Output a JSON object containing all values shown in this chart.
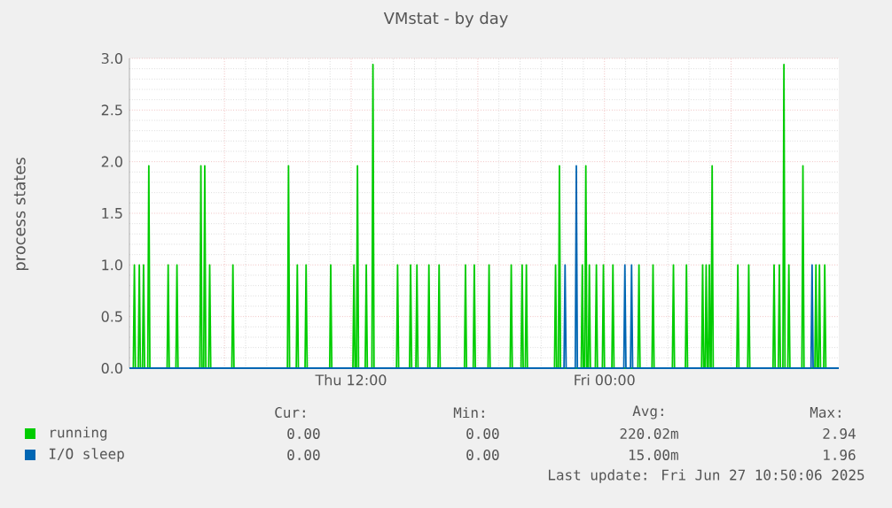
{
  "chart_data": {
    "type": "line",
    "title": "VMstat - by day",
    "ylabel": "process states",
    "xlim": [
      "2025-06-26T01:30",
      "2025-06-27T11:06"
    ],
    "ylim": [
      0,
      3
    ],
    "xticks": [
      {
        "value": "2025-06-26T06:00",
        "label": null
      },
      {
        "value": "2025-06-26T12:00",
        "label": "Thu 12:00"
      },
      {
        "value": "2025-06-26T18:00",
        "label": null
      },
      {
        "value": "2025-06-27T00:00",
        "label": "Fri 00:00"
      },
      {
        "value": "2025-06-27T06:00",
        "label": null
      }
    ],
    "yticks": [
      {
        "value": 0,
        "label": "0.0"
      },
      {
        "value": 0.5,
        "label": "0.5"
      },
      {
        "value": 1,
        "label": "1.0"
      },
      {
        "value": 1.5,
        "label": "1.5"
      },
      {
        "value": 2,
        "label": "2.0"
      },
      {
        "value": 2.5,
        "label": "2.5"
      },
      {
        "value": 3,
        "label": "3.0"
      }
    ],
    "grid": true,
    "legend": "bottom",
    "line_style": "solid",
    "series": [
      {
        "name": "running",
        "color": "#00cc00",
        "x": [
          "2025-06-26T01:30",
          "2025-06-26T01:41",
          "2025-06-26T01:44",
          "2025-06-26T01:47",
          "2025-06-26T01:55",
          "2025-06-26T01:58",
          "2025-06-26T02:01",
          "2025-06-26T02:07",
          "2025-06-26T02:10",
          "2025-06-26T02:13",
          "2025-06-26T02:22",
          "2025-06-26T02:25",
          "2025-06-26T02:28",
          "2025-06-26T03:17",
          "2025-06-26T03:20",
          "2025-06-26T03:23",
          "2025-06-26T03:42",
          "2025-06-26T03:45",
          "2025-06-26T03:48",
          "2025-06-26T04:50",
          "2025-06-26T04:53",
          "2025-06-26T04:56",
          "2025-06-26T05:01",
          "2025-06-26T05:04",
          "2025-06-26T05:07",
          "2025-06-26T05:15",
          "2025-06-26T05:18",
          "2025-06-26T05:21",
          "2025-06-26T06:21",
          "2025-06-26T06:24",
          "2025-06-26T06:27",
          "2025-06-26T08:59",
          "2025-06-26T09:02",
          "2025-06-26T09:05",
          "2025-06-26T09:24",
          "2025-06-26T09:27",
          "2025-06-26T09:30",
          "2025-06-26T09:49",
          "2025-06-26T09:52",
          "2025-06-26T09:55",
          "2025-06-26T10:59",
          "2025-06-26T11:02",
          "2025-06-26T11:05",
          "2025-06-26T12:05",
          "2025-06-26T12:08",
          "2025-06-26T12:11",
          "2025-06-26T12:15",
          "2025-06-26T12:18",
          "2025-06-26T12:21",
          "2025-06-26T12:40",
          "2025-06-26T12:43",
          "2025-06-26T12:46",
          "2025-06-26T12:59",
          "2025-06-26T13:02",
          "2025-06-26T13:05",
          "2025-06-26T14:09",
          "2025-06-26T14:12",
          "2025-06-26T14:15",
          "2025-06-26T14:46",
          "2025-06-26T14:49",
          "2025-06-26T14:52",
          "2025-06-26T15:04",
          "2025-06-26T15:07",
          "2025-06-26T15:10",
          "2025-06-26T15:38",
          "2025-06-26T15:41",
          "2025-06-26T15:44",
          "2025-06-26T16:07",
          "2025-06-26T16:10",
          "2025-06-26T16:13",
          "2025-06-26T17:22",
          "2025-06-26T17:25",
          "2025-06-26T17:28",
          "2025-06-26T17:47",
          "2025-06-26T17:50",
          "2025-06-26T17:53",
          "2025-06-26T18:29",
          "2025-06-26T18:32",
          "2025-06-26T18:35",
          "2025-06-26T19:32",
          "2025-06-26T19:35",
          "2025-06-26T19:38",
          "2025-06-26T20:03",
          "2025-06-26T20:06",
          "2025-06-26T20:09",
          "2025-06-26T20:15",
          "2025-06-26T20:18",
          "2025-06-26T20:21",
          "2025-06-26T21:38",
          "2025-06-26T21:41",
          "2025-06-26T21:44",
          "2025-06-26T21:49",
          "2025-06-26T21:52",
          "2025-06-26T21:55",
          "2025-06-26T22:54",
          "2025-06-26T22:57",
          "2025-06-26T23:00",
          "2025-06-26T23:04",
          "2025-06-26T23:07",
          "2025-06-26T23:10",
          "2025-06-26T23:14",
          "2025-06-26T23:17",
          "2025-06-26T23:20",
          "2025-06-26T23:34",
          "2025-06-26T23:37",
          "2025-06-26T23:40",
          "2025-06-26T23:54",
          "2025-06-26T23:57",
          "2025-06-27T00:00",
          "2025-06-27T00:21",
          "2025-06-27T00:24",
          "2025-06-27T00:27",
          "2025-06-27T01:35",
          "2025-06-27T01:38",
          "2025-06-27T01:41",
          "2025-06-27T02:15",
          "2025-06-27T02:18",
          "2025-06-27T02:21",
          "2025-06-27T03:13",
          "2025-06-27T03:16",
          "2025-06-27T03:19",
          "2025-06-27T03:50",
          "2025-06-27T03:53",
          "2025-06-27T03:56",
          "2025-06-27T04:36",
          "2025-06-27T04:39",
          "2025-06-27T04:42",
          "2025-06-27T04:46",
          "2025-06-27T04:49",
          "2025-06-27T04:52",
          "2025-06-27T04:55",
          "2025-06-27T04:58",
          "2025-06-27T05:01",
          "2025-06-27T05:03",
          "2025-06-27T05:06",
          "2025-06-27T05:09",
          "2025-06-27T06:16",
          "2025-06-27T06:19",
          "2025-06-27T06:22",
          "2025-06-27T06:47",
          "2025-06-27T06:50",
          "2025-06-27T06:53",
          "2025-06-27T07:59",
          "2025-06-27T08:02",
          "2025-06-27T08:05",
          "2025-06-27T08:14",
          "2025-06-27T08:17",
          "2025-06-27T08:20",
          "2025-06-27T08:27",
          "2025-06-27T08:30",
          "2025-06-27T08:33",
          "2025-06-27T08:41",
          "2025-06-27T08:44",
          "2025-06-27T08:47",
          "2025-06-27T09:21",
          "2025-06-27T09:24",
          "2025-06-27T09:27",
          "2025-06-27T09:58",
          "2025-06-27T10:01",
          "2025-06-27T10:04",
          "2025-06-27T10:08",
          "2025-06-27T10:11",
          "2025-06-27T10:14",
          "2025-06-27T10:23",
          "2025-06-27T10:26",
          "2025-06-27T10:29",
          "2025-06-27T11:06"
        ],
        "values": [
          0,
          0,
          1,
          0,
          0,
          1,
          0,
          0,
          1,
          0,
          0,
          1.96,
          0,
          0,
          1,
          0,
          0,
          1,
          0,
          0,
          1.96,
          0,
          0,
          1.96,
          0,
          0,
          1,
          0,
          0,
          1,
          0,
          0,
          1.96,
          0,
          0,
          1,
          0,
          0,
          1,
          0,
          0,
          1,
          0,
          0,
          1,
          0,
          0,
          1.96,
          0,
          0,
          1,
          0,
          0,
          2.94,
          0,
          0,
          1,
          0,
          0,
          1,
          0,
          0,
          1,
          0,
          0,
          1,
          0,
          0,
          1,
          0,
          0,
          1,
          0,
          0,
          1,
          0,
          0,
          1,
          0,
          0,
          1,
          0,
          0,
          1,
          0,
          0,
          1,
          0,
          0,
          1,
          0,
          0,
          1.96,
          0,
          0,
          1,
          0,
          0,
          1.96,
          0,
          0,
          1,
          0,
          0,
          1,
          0,
          0,
          1,
          0,
          0,
          1,
          0,
          0,
          1,
          0,
          0,
          1,
          0,
          0,
          1,
          0,
          0,
          1,
          0,
          0,
          1,
          0,
          0,
          1,
          0,
          0,
          1,
          0,
          0,
          1.96,
          0,
          0,
          1,
          0,
          0,
          1,
          0,
          0,
          1,
          0,
          0,
          1,
          0,
          0,
          2.94,
          0,
          0,
          1,
          0,
          0,
          1.96,
          0,
          0,
          1,
          0,
          0,
          1,
          0,
          0,
          1,
          0,
          0
        ]
      },
      {
        "name": "I/O sleep",
        "color": "#0066b3",
        "x": [
          "2025-06-26T01:30",
          "2025-06-26T22:05",
          "2025-06-26T22:08",
          "2025-06-26T22:11",
          "2025-06-26T22:37",
          "2025-06-26T22:40",
          "2025-06-26T22:43",
          "2025-06-27T00:55",
          "2025-06-27T00:58",
          "2025-06-27T01:01",
          "2025-06-27T01:14",
          "2025-06-27T01:17",
          "2025-06-27T01:20",
          "2025-06-27T09:47",
          "2025-06-27T09:50",
          "2025-06-27T09:53",
          "2025-06-27T11:06"
        ],
        "values": [
          0,
          0,
          1,
          0,
          0,
          1.96,
          0,
          0,
          1,
          0,
          0,
          1,
          0,
          0,
          1,
          0,
          0
        ]
      }
    ],
    "annotations": [
      "Cur:",
      "Min:",
      "Avg:",
      "Max:",
      "0.00",
      "0.00",
      "220.02m",
      "2.94",
      "0.00",
      "0.00",
      "15.00m",
      "1.96",
      "Last update: Fri Jun 27 10:50:06 2025"
    ]
  }
}
